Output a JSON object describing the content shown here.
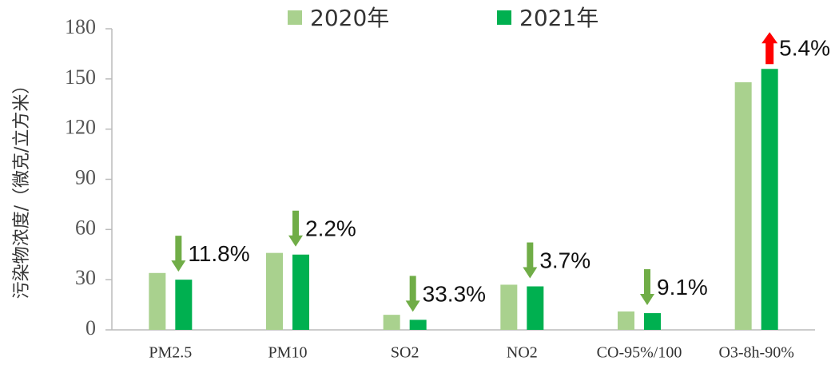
{
  "chart_data": {
    "type": "bar",
    "y_label": "污染物浓度/（微克/立方米）",
    "categories": [
      "PM2.5",
      "PM10",
      "SO2",
      "NO2",
      "CO-95%/100",
      "O3-8h-90%"
    ],
    "series": [
      {
        "name": "2020年",
        "color": "#a9d18e",
        "values": [
          34,
          46,
          9,
          27,
          11,
          148
        ]
      },
      {
        "name": "2021年",
        "color": "#00b050",
        "values": [
          30,
          45,
          6,
          26,
          10,
          156
        ]
      }
    ],
    "annotations": [
      {
        "text": "11.8%",
        "direction": "down",
        "color": "#70ad47"
      },
      {
        "text": "2.2%",
        "direction": "down",
        "color": "#70ad47"
      },
      {
        "text": "33.3%",
        "direction": "down",
        "color": "#70ad47"
      },
      {
        "text": "3.7%",
        "direction": "down",
        "color": "#70ad47"
      },
      {
        "text": "9.1%",
        "direction": "down",
        "color": "#70ad47"
      },
      {
        "text": "5.4%",
        "direction": "up",
        "color": "#ff0000"
      }
    ],
    "ylim": [
      0,
      180
    ],
    "yticks": [
      0,
      30,
      60,
      90,
      120,
      150,
      180
    ],
    "grid": false,
    "legend": "top"
  }
}
